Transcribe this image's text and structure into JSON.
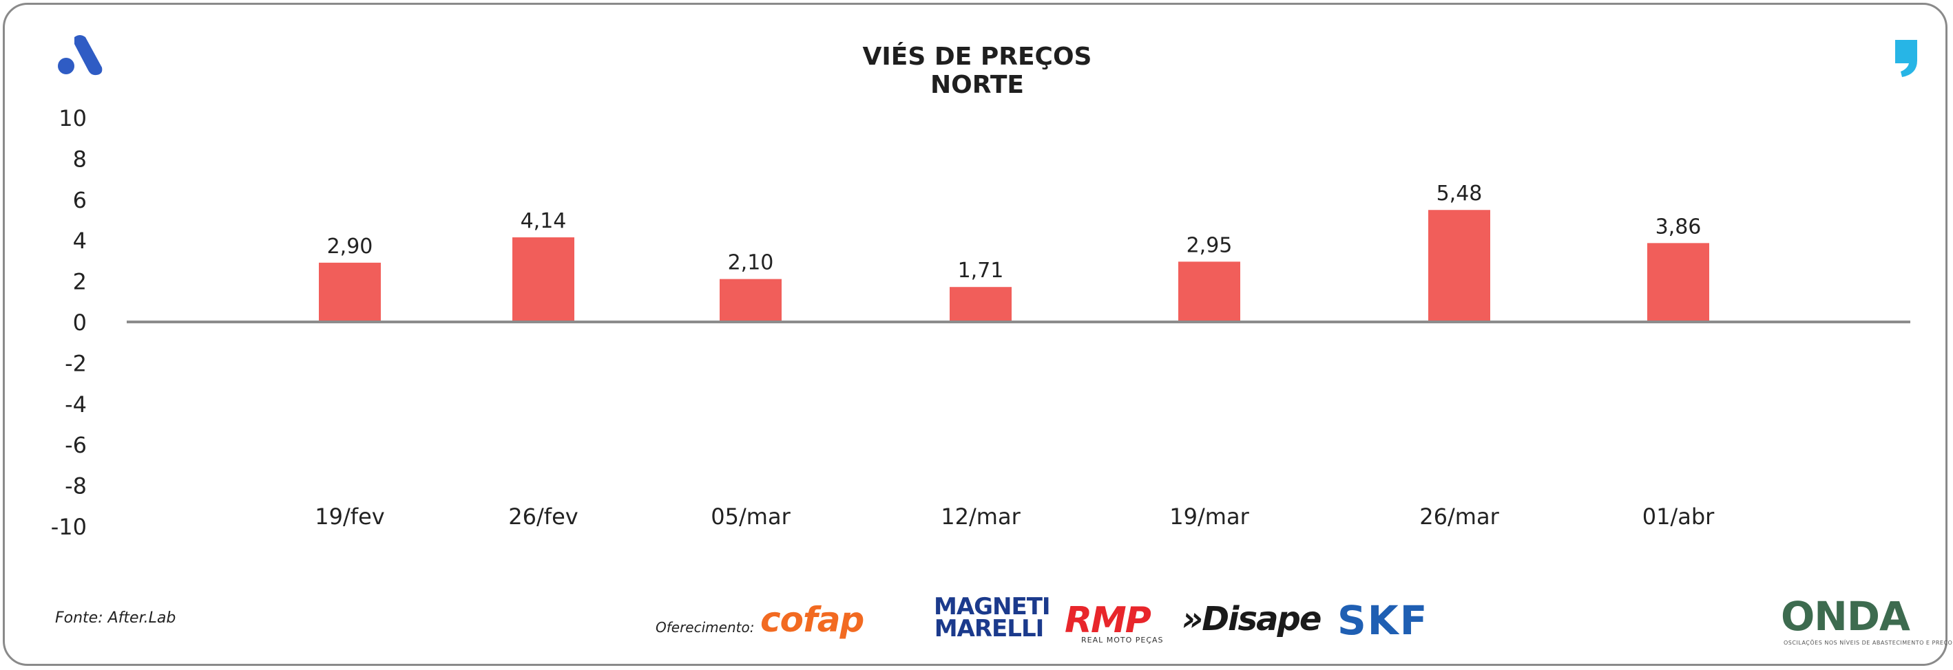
{
  "colors": {
    "bar": "#f15e5a",
    "axis": "#8c8c8c",
    "brand_a": "#2f5cc4",
    "brand_comma": "#27b5e6"
  },
  "icons": {
    "top_left": "a-logo-icon",
    "top_right": "comma-logo-icon"
  },
  "footer": {
    "source": "Fonte: After.Lab",
    "offer_label": "Oferecimento:",
    "sponsors": {
      "cofap": "cofap",
      "magneti": "MAGNETI MARELLI",
      "rmp": "RMP",
      "rmp_sub": "REAL MOTO PEÇAS",
      "disape": "»Disape",
      "skf": "SKF"
    },
    "brand": "ONDA",
    "brand_sub": "OSCILAÇÕES NOS NÍVEIS DE ABASTECIMENTO E PREÇO"
  },
  "chart_data": {
    "type": "bar",
    "title": "VIÉS DE PREÇOS NORTE",
    "categories": [
      "19/fev",
      "26/fev",
      "05/mar",
      "12/mar",
      "19/mar",
      "26/mar",
      "01/abr"
    ],
    "values": [
      2.9,
      4.14,
      2.1,
      1.71,
      2.95,
      5.48,
      3.86
    ],
    "data_labels": [
      "2,90",
      "4,14",
      "2,10",
      "1,71",
      "2,95",
      "5,48",
      "3,86"
    ],
    "ylim": [
      -10,
      10
    ],
    "yticks": [
      "10",
      "8",
      "6",
      "4",
      "2",
      "0",
      "-2",
      "-4",
      "-6",
      "-8",
      "-10"
    ],
    "xlabel": "",
    "ylabel": "",
    "grid": false,
    "legend": "none"
  }
}
